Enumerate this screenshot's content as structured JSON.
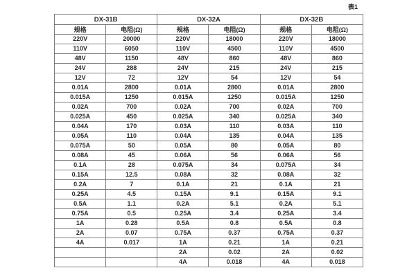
{
  "caption": "表1",
  "table": {
    "groups": [
      {
        "name": "DX-31B",
        "col_headers": [
          "规格",
          "电阻(Ω)"
        ]
      },
      {
        "name": "DX-32A",
        "col_headers": [
          "规格",
          "电阻(Ω)"
        ]
      },
      {
        "name": "DX-32B",
        "col_headers": [
          "规格",
          "电阻(Ω)"
        ]
      }
    ],
    "rows": [
      [
        "220V",
        "20000",
        "220V",
        "18000",
        "220V",
        "18000"
      ],
      [
        "110V",
        "6050",
        "110V",
        "4500",
        "110V",
        "4500"
      ],
      [
        "48V",
        "1150",
        "48V",
        "860",
        "48V",
        "860"
      ],
      [
        "24V",
        "288",
        "24V",
        "215",
        "24V",
        "215"
      ],
      [
        "12V",
        "72",
        "12V",
        "54",
        "12V",
        "54"
      ],
      [
        "0.01A",
        "2800",
        "0.01A",
        "2800",
        "0.01A",
        "2800"
      ],
      [
        "0.015A",
        "1250",
        "0.015A",
        "1250",
        "0.015A",
        "1250"
      ],
      [
        "0.02A",
        "700",
        "0.02A",
        "700",
        "0.02A",
        "700"
      ],
      [
        "0.025A",
        "450",
        "0.025A",
        "340",
        "0.025A",
        "340"
      ],
      [
        "0.04A",
        "170",
        "0.03A",
        "110",
        "0.03A",
        "110"
      ],
      [
        "0.05A",
        "110",
        "0.04A",
        "135",
        "0.04A",
        "135"
      ],
      [
        "0.075A",
        "50",
        "0.05A",
        "80",
        "0.05A",
        "80"
      ],
      [
        "0.08A",
        "45",
        "0.06A",
        "56",
        "0.06A",
        "56"
      ],
      [
        "0.1A",
        "28",
        "0.075A",
        "34",
        "0.075A",
        "34"
      ],
      [
        "0.15A",
        "12.5",
        "0.08A",
        "32",
        "0.08A",
        "32"
      ],
      [
        "0.2A",
        "7",
        "0.1A",
        "21",
        "0.1A",
        "21"
      ],
      [
        "0.25A",
        "4.5",
        "0.15A",
        "9.1",
        "0.15A",
        "9.1"
      ],
      [
        "0.5A",
        "1.1",
        "0.2A",
        "5.1",
        "0.2A",
        "5.1"
      ],
      [
        "0.75A",
        "0.5",
        "0.25A",
        "3.4",
        "0.25A",
        "3.4"
      ],
      [
        "1A",
        "0.28",
        "0.5A",
        "0.8",
        "0.5A",
        "0.8"
      ],
      [
        "2A",
        "0.07",
        "0.75A",
        "0.37",
        "0.75A",
        "0.37"
      ],
      [
        "4A",
        "0.017",
        "1A",
        "0.21",
        "1A",
        "0.21"
      ],
      [
        "",
        "",
        "2A",
        "0.02",
        "2A",
        "0.02"
      ],
      [
        "",
        "",
        "4A",
        "0.018",
        "4A",
        "0.018"
      ]
    ]
  }
}
